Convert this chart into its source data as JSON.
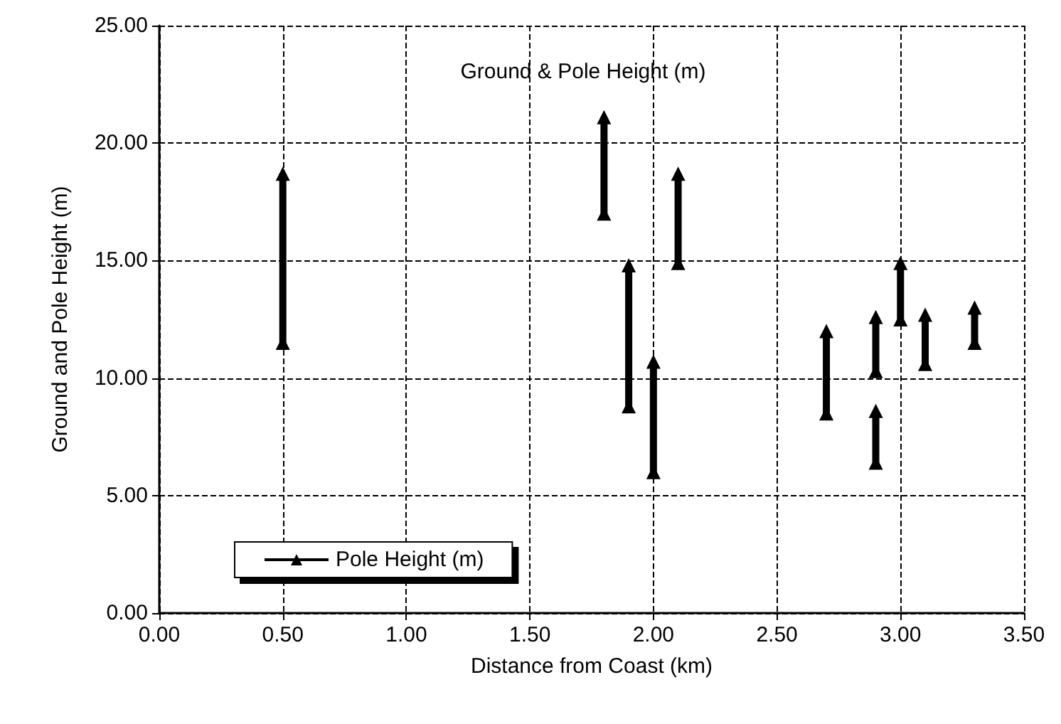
{
  "chart_data": {
    "type": "line",
    "title": "Ground & Pole Height (m)",
    "xlabel": "Distance from Coast (km)",
    "ylabel": "Ground and Pole Height (m)",
    "series": [
      {
        "name": "Pole Height (m)",
        "color": "#000000",
        "x": [
          0.5,
          0.5
        ],
        "values": [
          11.5,
          18.7
        ]
      },
      {
        "color": "#000000",
        "x": [
          1.8,
          1.8
        ],
        "values": [
          17.0,
          21.1
        ]
      },
      {
        "color": "#000000",
        "x": [
          1.9,
          1.9
        ],
        "values": [
          8.8,
          14.8
        ]
      },
      {
        "color": "#000000",
        "x": [
          2.0,
          2.0
        ],
        "values": [
          6.0,
          10.7
        ]
      },
      {
        "color": "#000000",
        "x": [
          2.1,
          2.1
        ],
        "values": [
          14.9,
          18.7
        ]
      },
      {
        "color": "#000000",
        "x": [
          2.7,
          2.7
        ],
        "values": [
          8.5,
          12.0
        ]
      },
      {
        "color": "#000000",
        "x": [
          2.9,
          2.9
        ],
        "values": [
          10.3,
          12.6
        ]
      },
      {
        "color": "#000000",
        "x": [
          2.9,
          2.9
        ],
        "values": [
          6.4,
          8.6
        ]
      },
      {
        "color": "#000000",
        "x": [
          3.0,
          3.0
        ],
        "values": [
          12.5,
          14.9
        ]
      },
      {
        "color": "#000000",
        "x": [
          3.1,
          3.1
        ],
        "values": [
          10.6,
          12.7
        ]
      },
      {
        "color": "#000000",
        "x": [
          3.3,
          3.3
        ],
        "values": [
          11.5,
          13.0
        ]
      }
    ],
    "xlim": [
      0,
      3.5
    ],
    "xticks": [
      {
        "value": 0,
        "label": "0.00"
      },
      {
        "value": 0.5,
        "label": "0.50"
      },
      {
        "value": 1,
        "label": "1.00"
      },
      {
        "value": 1.5,
        "label": "1.50"
      },
      {
        "value": 2,
        "label": "2.00"
      },
      {
        "value": 2.5,
        "label": "2.50"
      },
      {
        "value": 3,
        "label": "3.00"
      },
      {
        "value": 3.5,
        "label": "3.50"
      }
    ],
    "ylim": [
      0,
      25
    ],
    "yticks": [
      {
        "value": 0,
        "label": "0.00"
      },
      {
        "value": 5,
        "label": "5.00"
      },
      {
        "value": 10,
        "label": "10.00"
      },
      {
        "value": 15,
        "label": "15.00"
      },
      {
        "value": 20,
        "label": "20.00"
      },
      {
        "value": 25,
        "label": "25.00"
      }
    ],
    "grid": true,
    "legend": "bottom left",
    "marker": "triangle",
    "line_style": "solid"
  }
}
